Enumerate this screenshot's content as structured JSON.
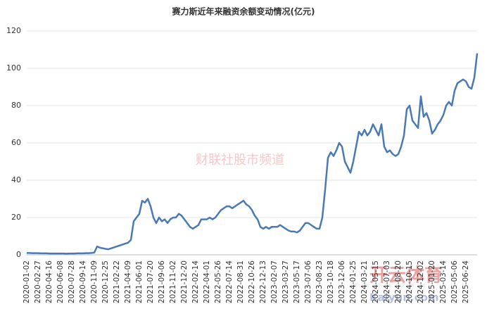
{
  "chart_data": {
    "type": "line",
    "title": "赛力斯近年来融资余额变动情况(亿元)",
    "watermarks": [
      "财联社股市频道",
      "开云体育",
      "Kaiyun.com"
    ],
    "color": "#4a7ab4",
    "grid": true,
    "ylim": [
      0,
      120
    ],
    "yticks": [
      0,
      20,
      40,
      60,
      80,
      100,
      120
    ],
    "categories": [
      "2020-01-02",
      null,
      null,
      null,
      "2020-02-27",
      null,
      null,
      null,
      "2020-04-16",
      null,
      null,
      null,
      "2020-06-08",
      null,
      null,
      null,
      "2020-07-28",
      null,
      null,
      null,
      "2020-09-14",
      null,
      null,
      null,
      "2020-11-09",
      null,
      null,
      null,
      "2020-12-25",
      null,
      null,
      null,
      "2021-02-22",
      null,
      null,
      null,
      "2021-04-09",
      null,
      null,
      null,
      "2021-06-01",
      null,
      null,
      null,
      "2021-07-20",
      null,
      null,
      null,
      "2021-09-06",
      null,
      null,
      null,
      "2021-11-02",
      null,
      null,
      null,
      "2021-12-20",
      null,
      null,
      null,
      "2022-02-14",
      null,
      null,
      null,
      "2022-04-01",
      null,
      null,
      null,
      "2022-05-26",
      null,
      null,
      null,
      "2022-07-14",
      null,
      null,
      null,
      "2022-08-31",
      null,
      null,
      null,
      "2022-10-26",
      null,
      null,
      null,
      "2022-12-13",
      null,
      null,
      null,
      "2023-02-07",
      null,
      null,
      null,
      "2023-03-27",
      null,
      null,
      null,
      "2023-05-17",
      null,
      null,
      null,
      "2023-07-06",
      null,
      null,
      null,
      "2023-08-23",
      null,
      null,
      null,
      "2023-10-18",
      null,
      null,
      null,
      "2023-12-06",
      null,
      null,
      null,
      "2024-01-25",
      null,
      null,
      null,
      "2024-03-21",
      null,
      null,
      null,
      "2024-05-15",
      null,
      null,
      null,
      "2024-07-03",
      null,
      null,
      null,
      "2024-08-20",
      null,
      null,
      null,
      "2024-10-15",
      null,
      null,
      null,
      "2024-12-02",
      null,
      null,
      null,
      "2025-01-20",
      null,
      null,
      null,
      "2025-03-14",
      null,
      null,
      null,
      "2025-05-06",
      null,
      null,
      null,
      "2025-06-24",
      null,
      null,
      null,
      null
    ],
    "values": [
      1,
      1,
      0.9,
      0.9,
      0.9,
      0.8,
      0.8,
      0.8,
      0.7,
      0.7,
      0.7,
      0.7,
      0.7,
      0.7,
      0.6,
      0.7,
      0.7,
      0.7,
      0.8,
      0.8,
      0.8,
      0.9,
      0.9,
      1,
      1.2,
      4.5,
      3.8,
      3.5,
      3.2,
      3,
      3.5,
      4,
      4.5,
      5,
      5.5,
      6,
      6.5,
      8,
      18,
      20,
      22,
      29,
      28,
      30,
      26,
      20,
      17,
      20,
      18,
      19,
      17,
      19,
      20,
      20,
      22,
      21,
      19,
      17,
      15,
      14,
      15,
      16,
      19,
      19,
      19,
      20,
      19,
      20,
      22,
      24,
      25,
      26,
      26,
      25,
      26,
      27,
      28,
      29,
      27,
      26,
      24,
      21,
      19,
      15,
      14,
      15,
      14,
      15,
      15,
      15,
      16,
      15,
      14,
      13,
      12.5,
      12.5,
      12,
      13,
      15,
      17,
      17,
      16,
      15,
      14,
      14,
      20,
      35,
      52,
      55,
      53,
      56,
      60,
      58,
      50,
      47,
      44,
      50,
      58,
      66,
      64,
      67,
      64,
      66,
      70,
      67,
      64,
      70,
      58,
      55,
      56,
      54,
      53,
      54,
      58,
      64,
      78,
      80,
      72,
      70,
      68,
      85,
      74,
      76,
      72,
      65,
      67,
      70,
      72,
      75,
      80,
      82,
      80,
      88,
      92,
      93,
      94,
      93,
      90,
      89,
      95,
      108
    ]
  }
}
